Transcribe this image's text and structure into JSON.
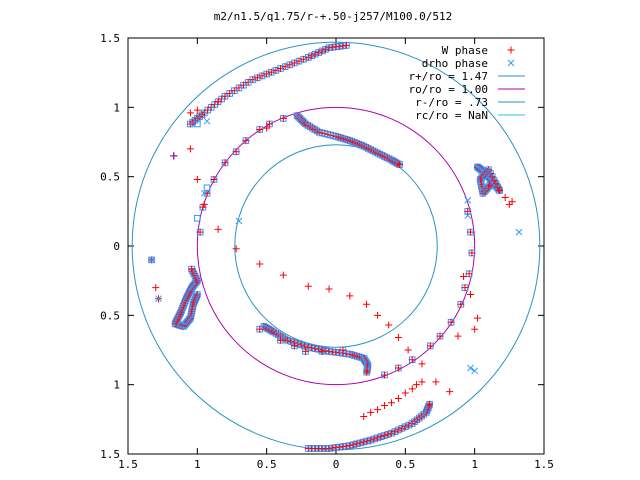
{
  "chart_data": {
    "type": "scatter",
    "title": "m2/n1.5/q1.75/r-+.50-j257/M100.0/512",
    "xlabel": "",
    "ylabel": "",
    "xlim": [
      -1.5,
      1.5
    ],
    "ylim": [
      -1.5,
      1.5
    ],
    "x_ticks": [
      -1.5,
      -1,
      -0.5,
      0,
      0.5,
      1,
      1.5
    ],
    "y_ticks": [
      -1.5,
      -1,
      -0.5,
      0,
      0.5,
      1,
      1.5
    ],
    "x_tick_labels": [
      "1.5",
      "1",
      "0.5",
      "0",
      "0.5",
      "1",
      "1.5"
    ],
    "y_tick_labels": [
      "1.5",
      "1",
      "0.5",
      "0",
      "0.5",
      "1",
      "1.5"
    ],
    "grid": false,
    "legend_position": "top-right",
    "legend": [
      {
        "label": "W phase",
        "kind": "marker",
        "symbol": "plus",
        "color": "#ff0000"
      },
      {
        "label": "drho phase",
        "kind": "marker",
        "symbol": "cross",
        "color": "#3399ff"
      },
      {
        "label": "r+/ro = 1.47",
        "kind": "line",
        "color": "#2a94c2"
      },
      {
        "label": "ro/ro = 1.00",
        "kind": "line",
        "color": "#b000b0"
      },
      {
        "label": "r-/ro = .73",
        "kind": "line",
        "color": "#2a94c2"
      },
      {
        "label": "rc/ro = NaN",
        "kind": "line",
        "color": "#33bbee"
      }
    ],
    "circles": [
      {
        "name": "r+/ro = 1.47",
        "radius": 1.47,
        "color": "#2a94c2"
      },
      {
        "name": "ro/ro = 1.00",
        "radius": 1.0,
        "color": "#b000b0"
      },
      {
        "name": "r-/ro = .73",
        "radius": 0.73,
        "color": "#2a94c2"
      }
    ],
    "series": [
      {
        "name": "W phase",
        "color": "#ff0000",
        "points": [
          [
            -1.33,
            -0.1
          ],
          [
            -1.3,
            -0.3
          ],
          [
            -1.28,
            -0.38
          ],
          [
            -1.17,
            0.65
          ],
          [
            -0.85,
            1.04
          ],
          [
            -0.5,
            0.85
          ],
          [
            0.88,
            -0.65
          ],
          [
            0.82,
            -1.05
          ],
          [
            0.72,
            -0.98
          ],
          [
            0.62,
            -0.85
          ],
          [
            0.52,
            -0.75
          ],
          [
            0.45,
            -0.66
          ],
          [
            0.38,
            -0.57
          ],
          [
            0.3,
            -0.5
          ],
          [
            0.22,
            -0.42
          ],
          [
            0.1,
            -0.36
          ],
          [
            -0.05,
            -0.31
          ],
          [
            -0.2,
            -0.29
          ],
          [
            -0.38,
            -0.21
          ],
          [
            -0.55,
            -0.13
          ],
          [
            -0.72,
            -0.02
          ],
          [
            -0.85,
            0.12
          ],
          [
            -0.95,
            0.3
          ],
          [
            -1.0,
            0.48
          ],
          [
            -1.05,
            0.7
          ],
          [
            0.92,
            -0.22
          ],
          [
            0.97,
            -0.35
          ],
          [
            1.02,
            -0.52
          ],
          [
            1.0,
            -0.6
          ],
          [
            1.18,
            0.4
          ],
          [
            1.22,
            0.35
          ],
          [
            1.27,
            0.32
          ],
          [
            1.25,
            0.3
          ],
          [
            -1.05,
            0.96
          ],
          [
            -1.0,
            0.98
          ],
          [
            0.62,
            -0.98
          ],
          [
            0.58,
            -1.0
          ],
          [
            0.55,
            -1.03
          ],
          [
            0.5,
            -1.06
          ],
          [
            0.45,
            -1.1
          ],
          [
            0.4,
            -1.13
          ],
          [
            0.35,
            -1.15
          ],
          [
            0.3,
            -1.18
          ],
          [
            0.25,
            -1.2
          ],
          [
            0.2,
            -1.23
          ]
        ]
      },
      {
        "name": "drho phase",
        "color": "#3399ff",
        "points": [
          [
            -1.33,
            -0.1
          ],
          [
            -1.28,
            -0.38
          ],
          [
            -0.93,
            0.9
          ],
          [
            -0.95,
            0.38
          ],
          [
            -0.7,
            0.18
          ],
          [
            1.0,
            -0.9
          ],
          [
            1.32,
            0.1
          ],
          [
            0.95,
            0.33
          ],
          [
            0.95,
            0.22
          ]
        ]
      }
    ],
    "arcs": [
      {
        "r": 1.45,
        "from": -0.9,
        "to": 0.0
      },
      {
        "r": 1.44,
        "from": 0.55,
        "to": -0.55
      },
      {
        "r": 1.33,
        "from": -0.87,
        "to": -0.62
      },
      {
        "r": 1.28,
        "from": -0.78,
        "to": -0.5
      }
    ]
  }
}
